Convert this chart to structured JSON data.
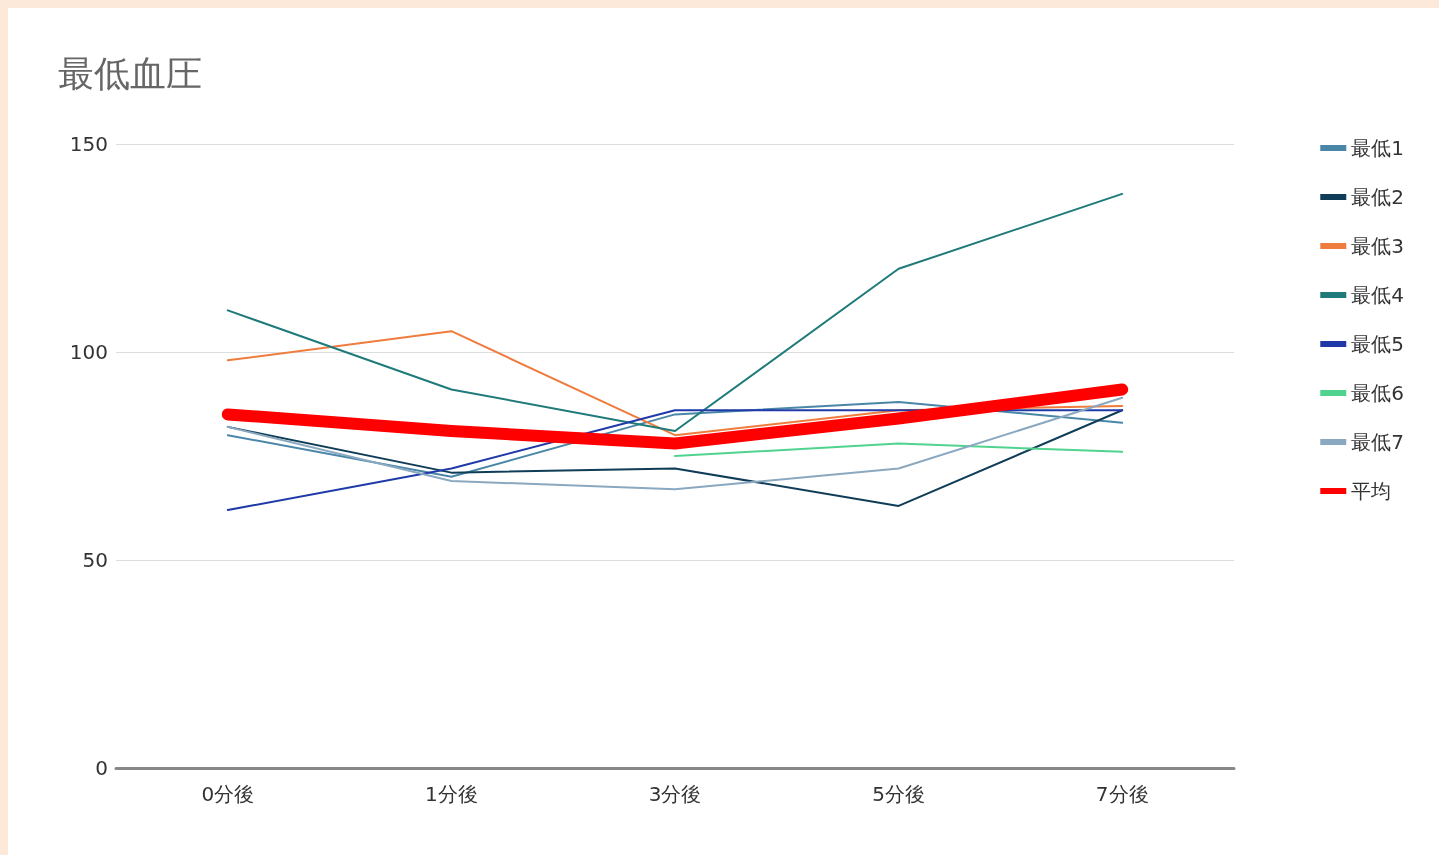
{
  "chart_data": {
    "type": "line",
    "title": "最低血圧",
    "categories": [
      "0分後",
      "1分後",
      "3分後",
      "5分後",
      "7分後"
    ],
    "series": [
      {
        "name": "最低1",
        "color": "#4a86a8",
        "values": [
          80,
          70,
          85,
          88,
          83
        ]
      },
      {
        "name": "最低2",
        "color": "#0f3d57",
        "values": [
          82,
          71,
          72,
          63,
          86
        ]
      },
      {
        "name": "最低3",
        "color": "#ef7c3d",
        "values": [
          98,
          105,
          80,
          86,
          87
        ]
      },
      {
        "name": "最低4",
        "color": "#1f7a7a",
        "values": [
          110,
          91,
          81,
          120,
          138
        ]
      },
      {
        "name": "最低5",
        "color": "#1f3aa8",
        "values": [
          62,
          72,
          86,
          86,
          86
        ]
      },
      {
        "name": "最低6",
        "color": "#4fd38e",
        "values": [
          null,
          null,
          75,
          78,
          76
        ]
      },
      {
        "name": "最低7",
        "color": "#8aa8c0",
        "values": [
          82,
          69,
          67,
          72,
          89
        ]
      },
      {
        "name": "平均",
        "color": "#ff0000",
        "values": [
          85,
          81,
          78,
          84,
          91
        ]
      }
    ],
    "ylim": [
      0,
      150
    ],
    "yticks": [
      0,
      50,
      100,
      150
    ],
    "grid": "y",
    "legend": "right",
    "marker": "none",
    "line_style": "solid"
  }
}
